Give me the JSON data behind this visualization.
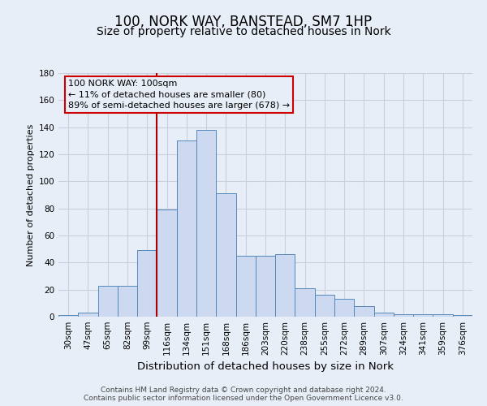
{
  "title": "100, NORK WAY, BANSTEAD, SM7 1HP",
  "subtitle": "Size of property relative to detached houses in Nork",
  "xlabel": "Distribution of detached houses by size in Nork",
  "ylabel": "Number of detached properties",
  "categories": [
    "30sqm",
    "47sqm",
    "65sqm",
    "82sqm",
    "99sqm",
    "116sqm",
    "134sqm",
    "151sqm",
    "168sqm",
    "186sqm",
    "203sqm",
    "220sqm",
    "238sqm",
    "255sqm",
    "272sqm",
    "289sqm",
    "307sqm",
    "324sqm",
    "341sqm",
    "359sqm",
    "376sqm"
  ],
  "values": [
    1,
    3,
    23,
    23,
    49,
    79,
    130,
    138,
    91,
    45,
    45,
    46,
    21,
    16,
    13,
    8,
    3,
    2,
    2,
    2,
    1
  ],
  "bar_color": "#ccd9f0",
  "bar_edge_color": "#5588bb",
  "bar_edge_width": 0.7,
  "annotation_line1": "100 NORK WAY: 100sqm",
  "annotation_line2": "← 11% of detached houses are smaller (80)",
  "annotation_line3": "89% of semi-detached houses are larger (678) →",
  "vline_x_index": 4.5,
  "vline_color": "#aa0000",
  "ylim": [
    0,
    180
  ],
  "yticks": [
    0,
    20,
    40,
    60,
    80,
    100,
    120,
    140,
    160,
    180
  ],
  "grid_color": "#c8d0e0",
  "background_color": "#e8eef8",
  "plot_bg_color": "#dde5f5",
  "footer_line1": "Contains HM Land Registry data © Crown copyright and database right 2024.",
  "footer_line2": "Contains public sector information licensed under the Open Government Licence v3.0.",
  "title_fontsize": 12,
  "subtitle_fontsize": 10,
  "xlabel_fontsize": 9.5,
  "ylabel_fontsize": 8,
  "tick_fontsize": 7.5,
  "annotation_fontsize": 8,
  "footer_fontsize": 6.5
}
